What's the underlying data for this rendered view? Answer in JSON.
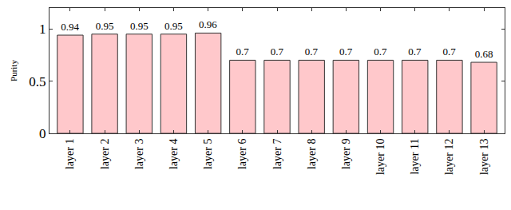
{
  "chart_data": {
    "type": "bar",
    "y_label": "Purity",
    "categories": [
      "layer 1",
      "layer 2",
      "layer 3",
      "layer 4",
      "layer 5",
      "layer 6",
      "layer 7",
      "layer 8",
      "layer 9",
      "layer 10",
      "layer 11",
      "layer 12",
      "layer 13"
    ],
    "values": [
      0.94,
      0.95,
      0.95,
      0.95,
      0.96,
      0.7,
      0.7,
      0.7,
      0.7,
      0.7,
      0.7,
      0.7,
      0.68
    ],
    "color": "#ffc8cb",
    "ylim": [
      0,
      1.2
    ],
    "yticks": [
      0,
      0.5,
      1
    ],
    "grid": false,
    "data_labels": true
  }
}
